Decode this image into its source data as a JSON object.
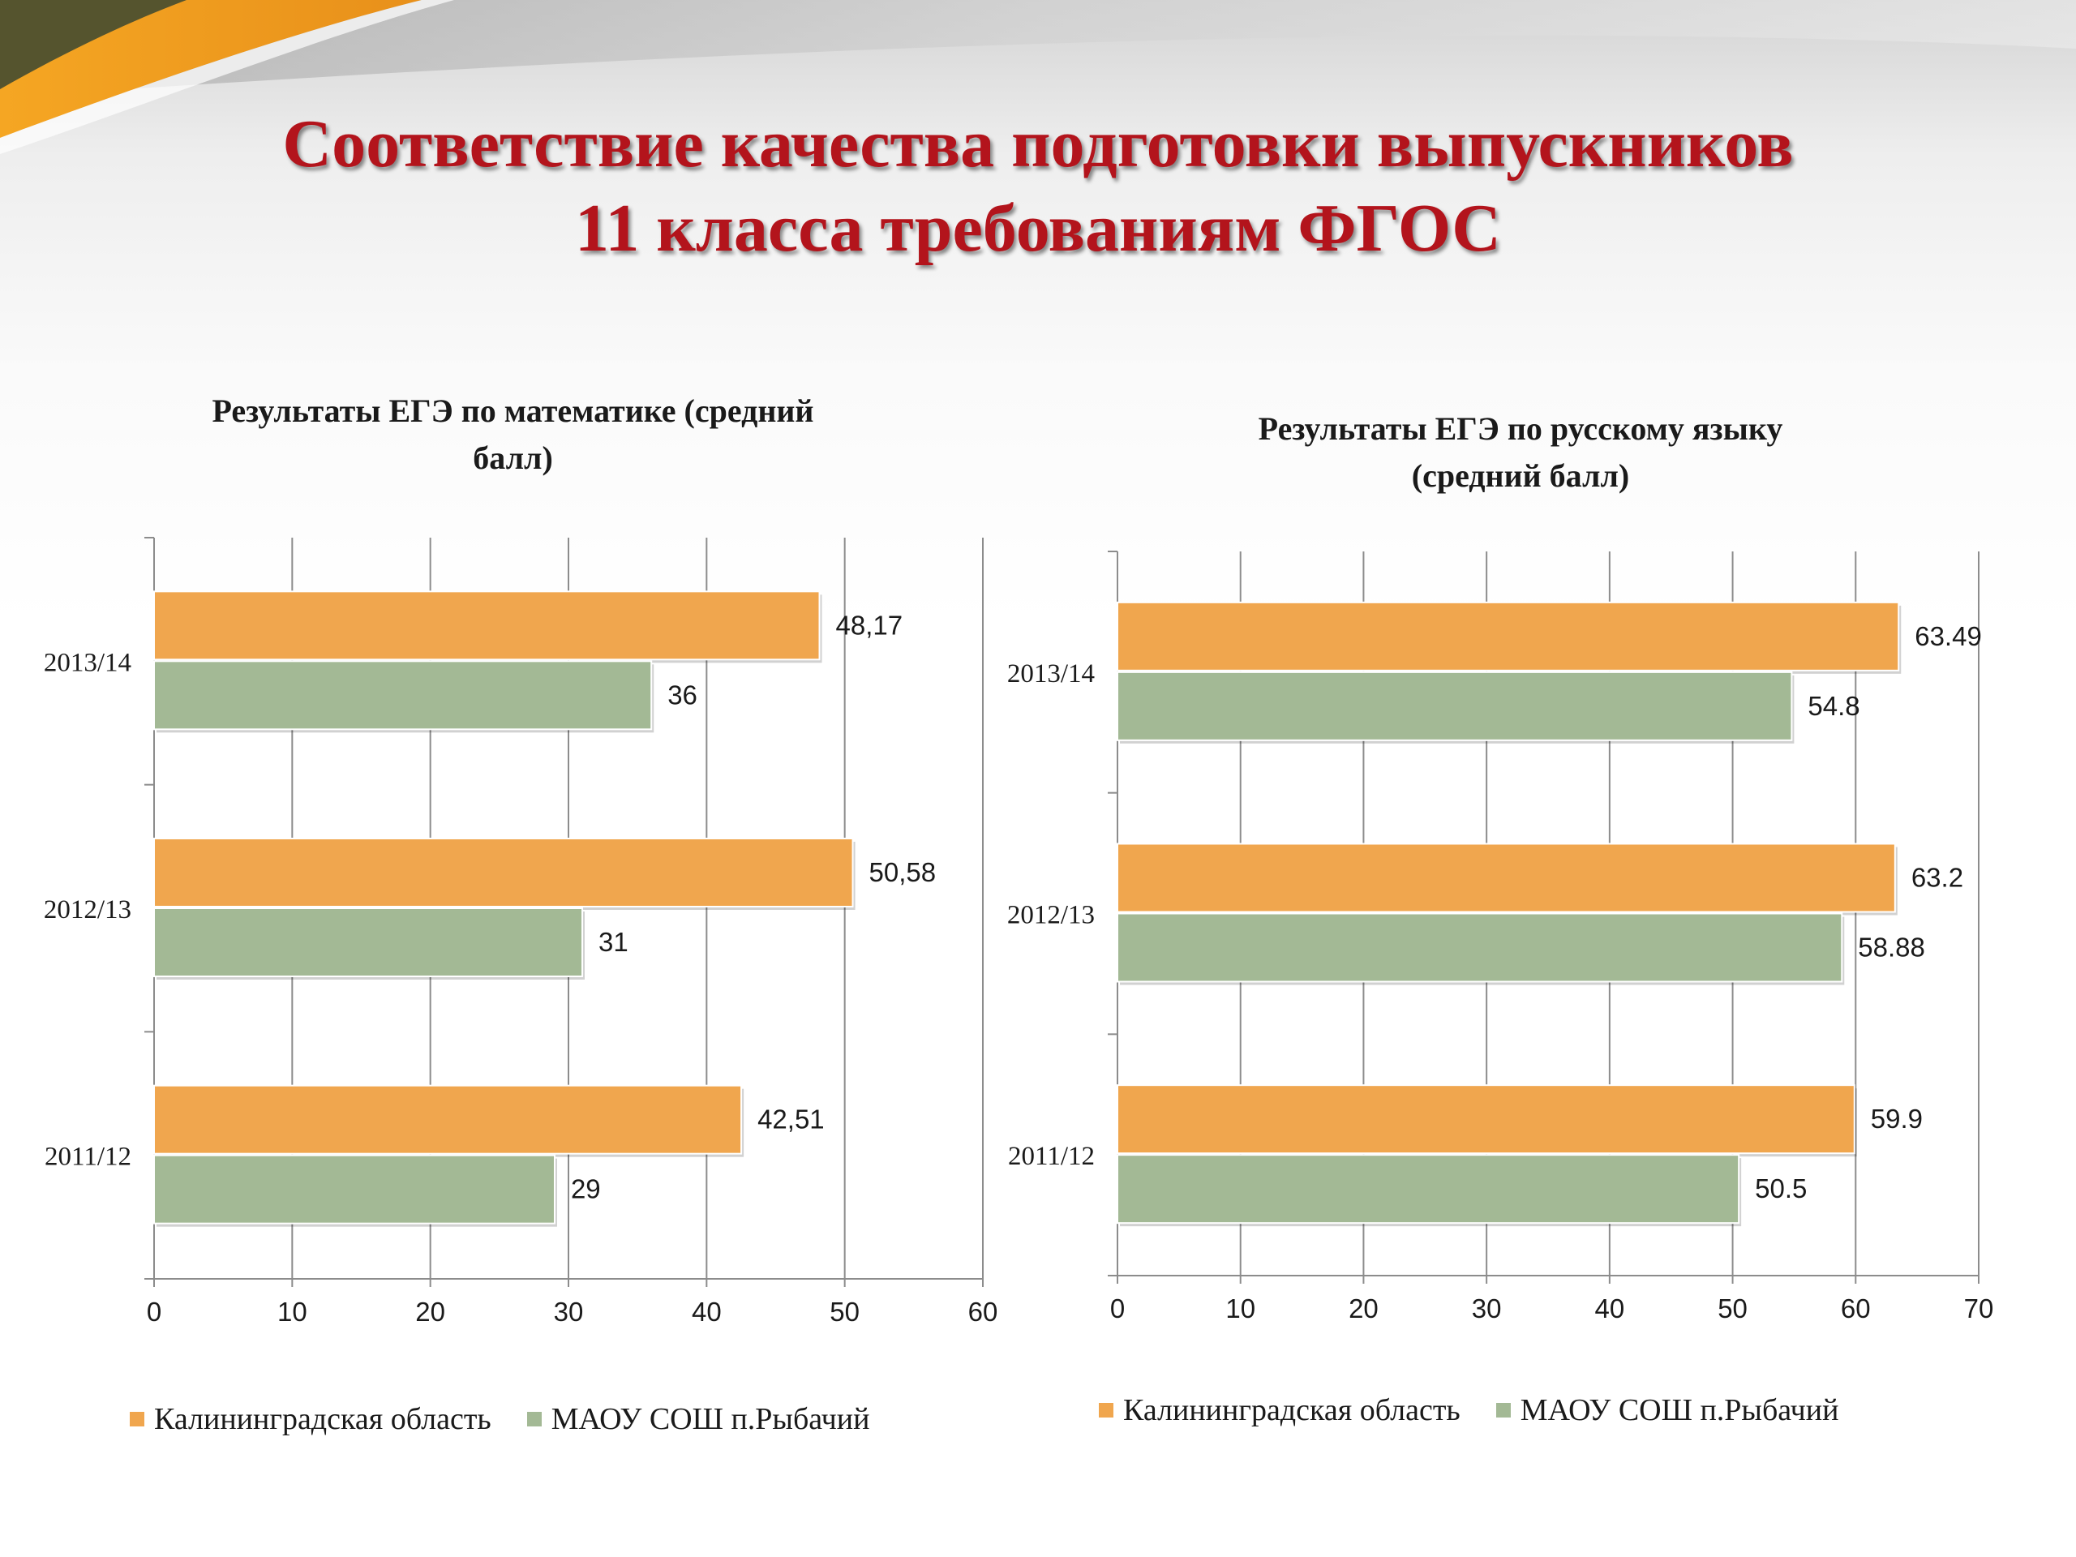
{
  "slide": {
    "title_line1": "Соответствие качества подготовки выпускников",
    "title_line2": "11 класса требованиям ФГОС"
  },
  "colors": {
    "orange": "#f0a64e",
    "green": "#a3b995",
    "title": "#b3141c"
  },
  "chart_data": [
    {
      "type": "bar",
      "orientation": "horizontal",
      "title_line1": "Результаты ЕГЭ по математике (средний",
      "title_line2": "балл)",
      "categories": [
        "2013/14",
        "2012/13",
        "2011/12"
      ],
      "series": [
        {
          "name": "Калининградская область",
          "values": [
            48.17,
            50.58,
            42.51
          ],
          "labels": [
            "48,17",
            "50,58",
            "42,51"
          ],
          "color": "#f0a64e"
        },
        {
          "name": "МАОУ СОШ п.Рыбачий",
          "values": [
            36,
            31,
            29
          ],
          "labels": [
            "36",
            "31",
            "29"
          ],
          "color": "#a3b995"
        }
      ],
      "xlim": [
        0,
        60
      ],
      "xticks": [
        0,
        10,
        20,
        30,
        40,
        50,
        60
      ],
      "grid": true,
      "legend_position": "bottom"
    },
    {
      "type": "bar",
      "orientation": "horizontal",
      "title_line1": "Результаты ЕГЭ по русскому языку",
      "title_line2": "(средний балл)",
      "categories": [
        "2013/14",
        "2012/13",
        "2011/12"
      ],
      "series": [
        {
          "name": "Калининградская область",
          "values": [
            63.49,
            63.2,
            59.9
          ],
          "labels": [
            "63.49",
            "63.2",
            "59.9"
          ],
          "color": "#f0a64e"
        },
        {
          "name": "МАОУ СОШ п.Рыбачий",
          "values": [
            54.8,
            58.88,
            50.5
          ],
          "labels": [
            "54.8",
            "58.88",
            "50.5"
          ],
          "color": "#a3b995"
        }
      ],
      "xlim": [
        0,
        70
      ],
      "xticks": [
        0,
        10,
        20,
        30,
        40,
        50,
        60,
        70
      ],
      "grid": true,
      "legend_position": "bottom"
    }
  ]
}
